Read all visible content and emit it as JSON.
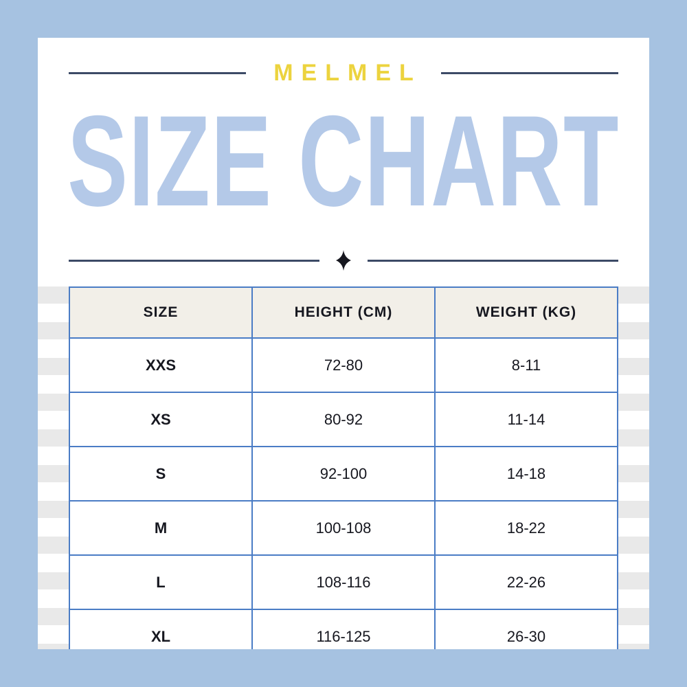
{
  "header": {
    "brand": "MELMEL",
    "title": "SIZE CHART"
  },
  "divider": {
    "icon": "four-pointed-sparkle"
  },
  "chart_data": {
    "type": "table",
    "title": "MELMEL SIZE CHART",
    "columns": [
      "SIZE",
      "HEIGHT (CM)",
      "WEIGHT (KG)"
    ],
    "rows": [
      [
        "XXS",
        "72-80",
        "8-11"
      ],
      [
        "XS",
        "80-92",
        "11-14"
      ],
      [
        "S",
        "92-100",
        "14-18"
      ],
      [
        "M",
        "100-108",
        "18-22"
      ],
      [
        "L",
        "108-116",
        "22-26"
      ],
      [
        "XL",
        "116-125",
        "26-30"
      ]
    ]
  },
  "colors": {
    "frame_blue": "#a6c2e1",
    "title_blue": "#b4c9e8",
    "brand_yellow": "#ecd33e",
    "table_border_blue": "#4a7cc5",
    "header_bg_cream": "#f2efe8",
    "text_dark": "#16171f",
    "stripe_gray": "#e9e9e9",
    "divider_dark": "#3c4a66"
  }
}
